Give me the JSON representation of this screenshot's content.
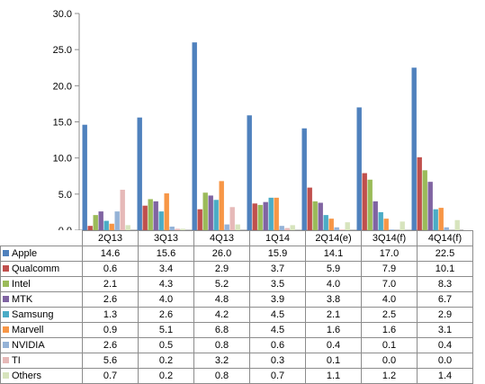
{
  "chart_data": {
    "type": "bar",
    "title": "",
    "xlabel": "",
    "ylabel": "",
    "ylim": [
      0,
      30
    ],
    "y_ticks": [
      "0.0",
      "5.0",
      "10.0",
      "15.0",
      "20.0",
      "25.0",
      "30.0"
    ],
    "grid": false,
    "legend": "data table below chart",
    "categories": [
      "2Q13",
      "3Q13",
      "4Q13",
      "1Q14",
      "2Q14(e)",
      "3Q14(f)",
      "4Q14(f)"
    ],
    "series": [
      {
        "name": "Apple",
        "color": "#4F81BD",
        "values": [
          14.6,
          15.6,
          26.0,
          15.9,
          14.1,
          17.0,
          22.5
        ]
      },
      {
        "name": "Qualcomm",
        "color": "#C0504D",
        "values": [
          0.6,
          3.4,
          2.9,
          3.7,
          5.9,
          7.9,
          10.1
        ]
      },
      {
        "name": "Intel",
        "color": "#9BBB59",
        "values": [
          2.1,
          4.3,
          5.2,
          3.5,
          4.0,
          7.0,
          8.3
        ]
      },
      {
        "name": "MTK",
        "color": "#8064A2",
        "values": [
          2.6,
          4.0,
          4.8,
          3.9,
          3.8,
          4.0,
          6.7
        ]
      },
      {
        "name": "Samsung",
        "color": "#4BACC6",
        "values": [
          1.3,
          2.6,
          4.2,
          4.5,
          2.1,
          2.5,
          2.9
        ]
      },
      {
        "name": "Marvell",
        "color": "#F79646",
        "values": [
          0.9,
          5.1,
          6.8,
          4.5,
          1.6,
          1.6,
          3.1
        ]
      },
      {
        "name": "NVIDIA",
        "color": "#95B3D7",
        "values": [
          2.6,
          0.5,
          0.8,
          0.6,
          0.4,
          0.1,
          0.4
        ]
      },
      {
        "name": "TI",
        "color": "#E6B9B8",
        "values": [
          5.6,
          0.2,
          3.2,
          0.3,
          0.1,
          0.0,
          0.0
        ]
      },
      {
        "name": "Others",
        "color": "#D7E4BD",
        "values": [
          0.7,
          0.2,
          0.8,
          0.7,
          1.1,
          1.2,
          1.4
        ]
      }
    ]
  }
}
